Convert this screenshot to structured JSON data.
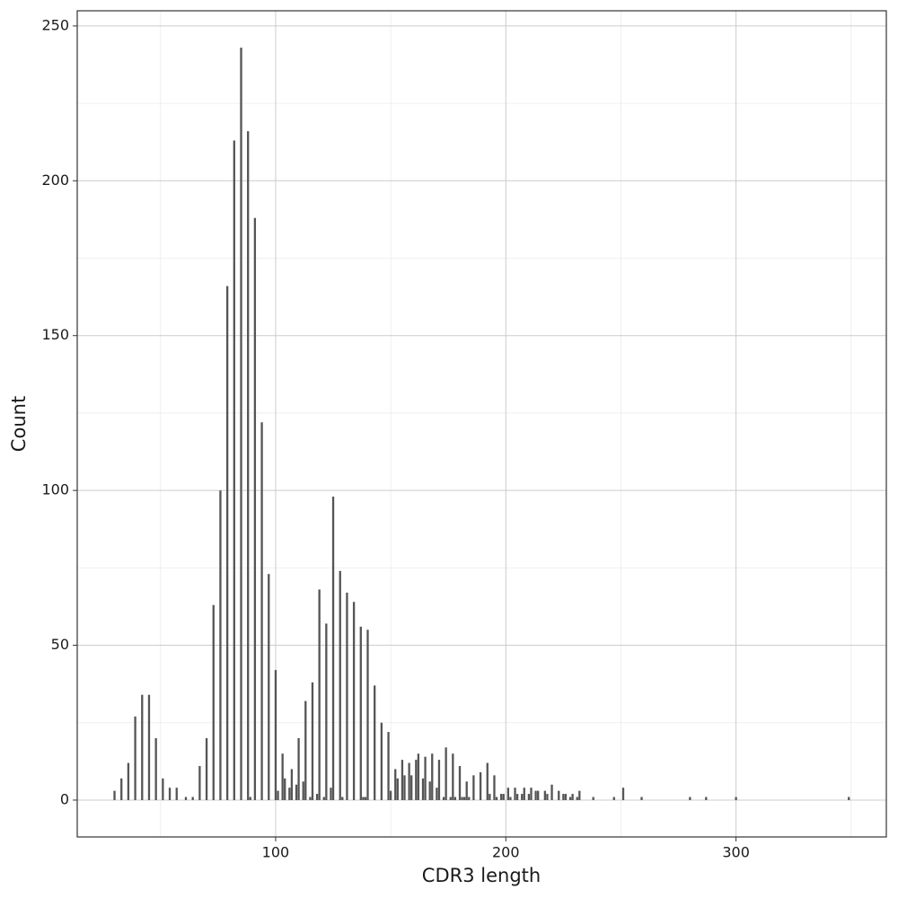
{
  "chart_data": {
    "type": "bar",
    "x_label": "CDR3 length",
    "y_label": "Count",
    "color": "#555555",
    "grid": true,
    "xlim": [
      13.8,
      365.3
    ],
    "ylim": [
      -11.9,
      254.9
    ],
    "xticks": [
      100,
      200,
      300
    ],
    "yticks": [
      0,
      50,
      100,
      150,
      200,
      250
    ],
    "xminor": [
      50,
      150,
      250,
      350
    ],
    "yminor": [
      25,
      75,
      125,
      175,
      225
    ],
    "x": [
      30,
      33,
      36,
      39,
      42,
      45,
      48,
      51,
      54,
      57,
      61,
      64,
      67,
      70,
      73,
      76,
      79,
      82,
      85,
      88,
      89,
      91,
      94,
      97,
      100,
      101,
      103,
      104,
      106,
      107,
      109,
      110,
      112,
      113,
      115,
      116,
      118,
      119,
      121,
      122,
      124,
      125,
      128,
      129,
      131,
      134,
      137,
      138,
      139,
      140,
      143,
      146,
      149,
      150,
      152,
      153,
      155,
      156,
      158,
      159,
      161,
      162,
      164,
      165,
      167,
      168,
      170,
      171,
      173,
      174,
      176,
      177,
      178,
      180,
      181,
      182,
      183,
      184,
      186,
      189,
      192,
      193,
      195,
      196,
      198,
      199,
      201,
      202,
      204,
      205,
      207,
      208,
      210,
      211,
      213,
      214,
      217,
      218,
      220,
      223,
      225,
      226,
      228,
      229,
      231,
      232,
      238,
      247,
      251,
      259,
      280,
      287,
      300,
      349
    ],
    "values": [
      3,
      7,
      12,
      27,
      34,
      34,
      20,
      7,
      4,
      4,
      1,
      1,
      11,
      20,
      63,
      100,
      166,
      213,
      243,
      216,
      1,
      188,
      122,
      73,
      42,
      3,
      15,
      7,
      4,
      10,
      5,
      20,
      6,
      32,
      1,
      38,
      2,
      68,
      1,
      57,
      4,
      98,
      74,
      1,
      67,
      64,
      56,
      1,
      1,
      55,
      37,
      25,
      22,
      3,
      10,
      7,
      13,
      8,
      12,
      8,
      13,
      15,
      7,
      14,
      6,
      15,
      4,
      13,
      1,
      17,
      1,
      15,
      1,
      11,
      1,
      1,
      6,
      1,
      8,
      9,
      12,
      2,
      8,
      1,
      2,
      2,
      4,
      1,
      4,
      2,
      2,
      4,
      2,
      4,
      3,
      3,
      3,
      2,
      5,
      3,
      2,
      2,
      1,
      2,
      1,
      3,
      1,
      1,
      4,
      1,
      1,
      1,
      1,
      1
    ]
  }
}
